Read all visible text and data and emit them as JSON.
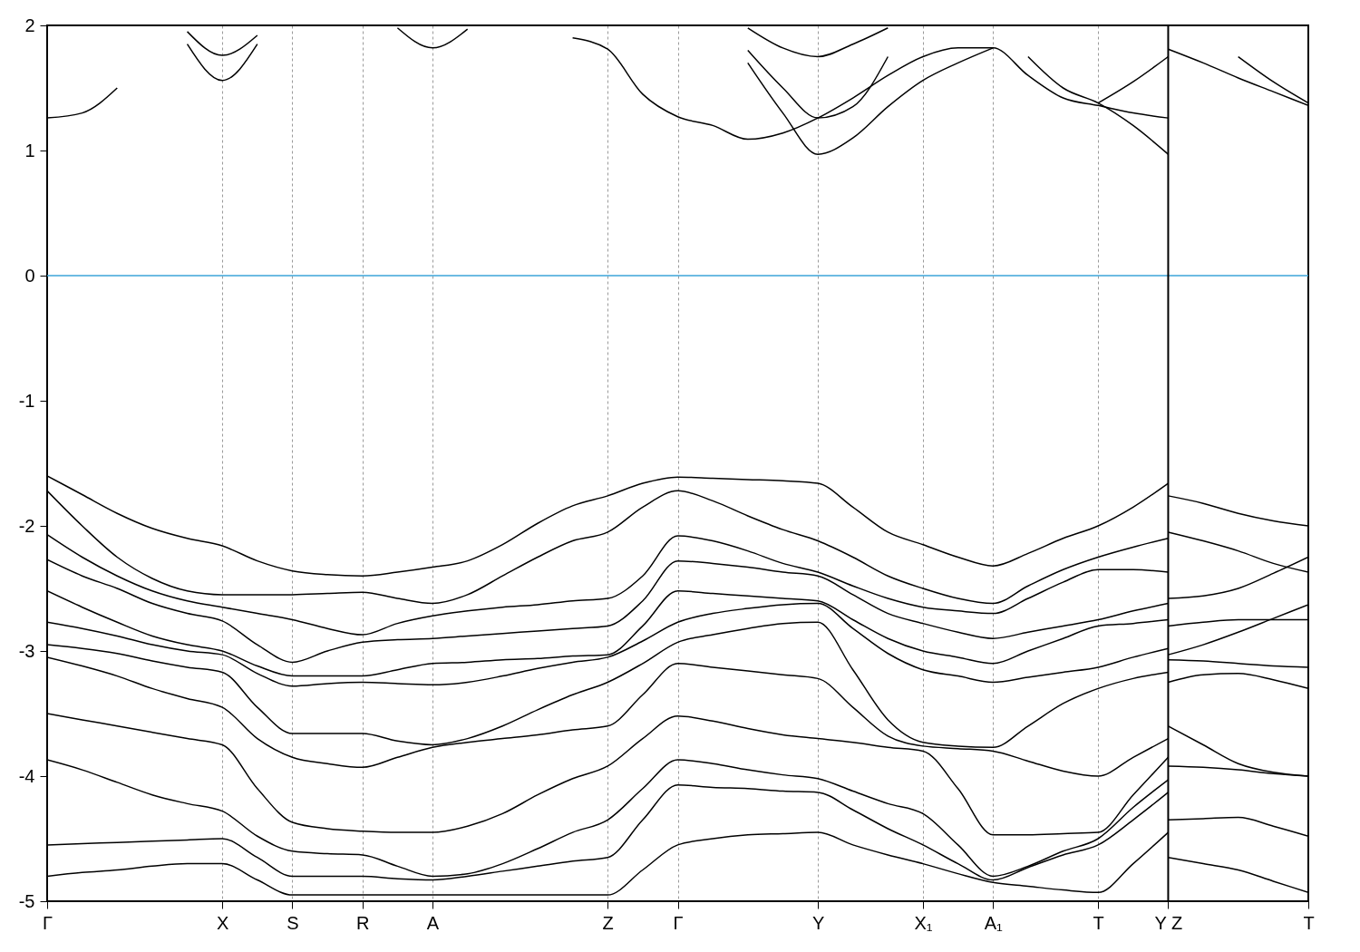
{
  "chart_data": {
    "type": "line",
    "ylim": [
      -5,
      2
    ],
    "categories": [
      "Γ",
      null,
      null,
      null,
      null,
      "X",
      null,
      "S",
      null,
      "R",
      null,
      "A",
      null,
      null,
      null,
      null,
      "Z",
      null,
      "Γ",
      null,
      null,
      null,
      "Y",
      null,
      null,
      "X₁",
      null,
      "A₁",
      null,
      null,
      "T",
      null,
      "Y Z",
      null,
      null,
      null,
      "T"
    ],
    "yticks": [
      -5,
      -4,
      -3,
      -2,
      -1,
      0,
      1,
      2
    ],
    "grid": "x",
    "legend": false,
    "ref_lines": [
      {
        "axis": "y",
        "value": 0,
        "color": "#3da5d9"
      },
      {
        "axis": "x",
        "value": "Y Z",
        "color": "#000000"
      }
    ],
    "series": [
      {
        "color": "#000000",
        "values": [
          1.26,
          1.3,
          1.5,
          null,
          null,
          null,
          null,
          null,
          null,
          null,
          null,
          null,
          null,
          null,
          null,
          null,
          null,
          null,
          null,
          null,
          null,
          null,
          null,
          null,
          null,
          null,
          null,
          null,
          null,
          null,
          null,
          null,
          null,
          null,
          null,
          null,
          null
        ]
      },
      {
        "color": "#000000",
        "values": [
          null,
          null,
          null,
          null,
          1.85,
          1.56,
          1.85,
          null,
          null,
          null,
          null,
          null,
          null,
          null,
          null,
          null,
          null,
          null,
          null,
          null,
          null,
          null,
          null,
          null,
          null,
          null,
          null,
          null,
          null,
          null,
          null,
          null,
          null,
          null,
          null,
          null,
          null
        ]
      },
      {
        "color": "#000000",
        "values": [
          null,
          null,
          null,
          null,
          1.95,
          1.76,
          1.92,
          null,
          null,
          null,
          null,
          null,
          null,
          null,
          null,
          null,
          null,
          null,
          null,
          null,
          null,
          null,
          null,
          null,
          null,
          null,
          null,
          null,
          null,
          null,
          null,
          null,
          null,
          null,
          null,
          null,
          null
        ]
      },
      {
        "color": "#000000",
        "values": [
          null,
          null,
          null,
          null,
          null,
          null,
          null,
          null,
          null,
          null,
          1.98,
          1.82,
          1.97,
          null,
          null,
          null,
          null,
          null,
          null,
          null,
          null,
          null,
          null,
          null,
          null,
          null,
          null,
          null,
          null,
          null,
          null,
          null,
          null,
          null,
          null,
          null,
          null
        ]
      },
      {
        "color": "#000000",
        "values": [
          null,
          null,
          null,
          null,
          null,
          null,
          null,
          null,
          null,
          null,
          null,
          null,
          null,
          null,
          null,
          1.9,
          1.81,
          1.45,
          1.27,
          1.2,
          1.09,
          1.14,
          1.26,
          1.42,
          1.6,
          1.75,
          1.82,
          1.82,
          1.6,
          1.42,
          1.36,
          1.3,
          1.26,
          null,
          null,
          null,
          null
        ]
      },
      {
        "color": "#000000",
        "values": [
          null,
          null,
          null,
          null,
          null,
          null,
          null,
          null,
          null,
          null,
          null,
          null,
          null,
          null,
          null,
          null,
          null,
          null,
          null,
          null,
          1.7,
          1.3,
          0.97,
          1.1,
          1.35,
          1.56,
          1.7,
          1.82,
          null,
          null,
          null,
          null,
          null,
          null,
          null,
          null,
          null
        ]
      },
      {
        "color": "#000000",
        "values": [
          null,
          null,
          null,
          null,
          null,
          null,
          null,
          null,
          null,
          null,
          null,
          null,
          null,
          null,
          null,
          null,
          null,
          null,
          null,
          null,
          1.98,
          1.82,
          1.75,
          1.85,
          1.98,
          null,
          null,
          null,
          null,
          null,
          null,
          null,
          null,
          null,
          null,
          null,
          null
        ]
      },
      {
        "color": "#000000",
        "values": [
          null,
          null,
          null,
          null,
          null,
          null,
          null,
          null,
          null,
          null,
          null,
          null,
          null,
          null,
          null,
          null,
          null,
          null,
          null,
          null,
          1.8,
          1.5,
          1.26,
          1.35,
          1.75,
          null,
          null,
          null,
          null,
          null,
          null,
          null,
          null,
          null,
          null,
          null,
          null
        ]
      },
      {
        "color": "#000000",
        "values": [
          null,
          null,
          null,
          null,
          null,
          null,
          null,
          null,
          null,
          null,
          null,
          null,
          null,
          null,
          null,
          null,
          null,
          null,
          null,
          null,
          null,
          null,
          null,
          null,
          null,
          null,
          null,
          null,
          1.75,
          1.5,
          1.38,
          1.2,
          0.97,
          null,
          null,
          null,
          null
        ]
      },
      {
        "color": "#000000",
        "values": [
          null,
          null,
          null,
          null,
          null,
          null,
          null,
          null,
          null,
          null,
          null,
          null,
          null,
          null,
          null,
          null,
          null,
          null,
          null,
          null,
          null,
          null,
          null,
          null,
          null,
          null,
          null,
          null,
          null,
          null,
          1.38,
          1.55,
          1.75,
          null,
          null,
          null,
          null
        ]
      },
      {
        "color": "#000000",
        "values": [
          null,
          null,
          null,
          null,
          null,
          null,
          null,
          null,
          null,
          null,
          null,
          null,
          null,
          null,
          null,
          null,
          null,
          null,
          null,
          null,
          null,
          null,
          null,
          null,
          null,
          null,
          null,
          null,
          null,
          null,
          null,
          null,
          1.81,
          1.7,
          1.58,
          1.47,
          1.36
        ]
      },
      {
        "color": "#000000",
        "values": [
          null,
          null,
          null,
          null,
          null,
          null,
          null,
          null,
          null,
          null,
          null,
          null,
          null,
          null,
          null,
          null,
          null,
          null,
          null,
          null,
          null,
          null,
          null,
          null,
          null,
          null,
          null,
          null,
          null,
          null,
          null,
          null,
          null,
          null,
          1.75,
          1.55,
          1.38
        ]
      },
      {
        "color": "#000000",
        "values": [
          -1.6,
          -1.75,
          -1.9,
          -2.02,
          -2.1,
          -2.16,
          -2.28,
          -2.36,
          -2.39,
          -2.4,
          -2.37,
          -2.33,
          -2.28,
          -2.15,
          -1.98,
          -1.84,
          -1.76,
          -1.66,
          -1.61,
          -1.62,
          -1.63,
          -1.64,
          -1.66,
          -1.85,
          -2.05,
          -2.15,
          -2.25,
          -2.32,
          -2.22,
          -2.1,
          -2.0,
          -1.85,
          -1.66,
          null,
          null,
          null,
          null
        ]
      },
      {
        "color": "#000000",
        "values": [
          -1.72,
          -2.0,
          -2.25,
          -2.42,
          -2.52,
          -2.55,
          -2.55,
          -2.55,
          -2.54,
          -2.53,
          -2.58,
          -2.62,
          -2.55,
          -2.4,
          -2.25,
          -2.12,
          -2.05,
          -1.85,
          -1.72,
          -1.8,
          -1.92,
          -2.03,
          -2.12,
          -2.25,
          -2.4,
          -2.5,
          -2.58,
          -2.62,
          -2.48,
          -2.35,
          -2.25,
          -2.17,
          -2.1,
          null,
          null,
          null,
          null
        ]
      },
      {
        "color": "#000000",
        "values": [
          -2.07,
          -2.25,
          -2.4,
          -2.52,
          -2.6,
          -2.65,
          -2.7,
          -2.75,
          -2.82,
          -2.87,
          -2.78,
          -2.72,
          -2.68,
          -2.65,
          -2.63,
          -2.6,
          -2.58,
          -2.4,
          -2.08,
          -2.12,
          -2.2,
          -2.3,
          -2.37,
          -2.48,
          -2.58,
          -2.65,
          -2.68,
          -2.7,
          -2.58,
          -2.45,
          -2.35,
          -2.35,
          -2.37,
          null,
          null,
          null,
          null
        ]
      },
      {
        "color": "#000000",
        "values": [
          -2.27,
          -2.4,
          -2.5,
          -2.62,
          -2.7,
          -2.76,
          -2.95,
          -3.09,
          -3.0,
          -2.93,
          -2.91,
          -2.9,
          -2.88,
          -2.86,
          -2.84,
          -2.82,
          -2.8,
          -2.6,
          -2.28,
          -2.3,
          -2.33,
          -2.37,
          -2.4,
          -2.55,
          -2.7,
          -2.78,
          -2.85,
          -2.9,
          -2.85,
          -2.8,
          -2.75,
          -2.68,
          -2.62,
          null,
          null,
          null,
          null
        ]
      },
      {
        "color": "#000000",
        "values": [
          -2.52,
          -2.65,
          -2.77,
          -2.88,
          -2.95,
          -3.0,
          -3.12,
          -3.2,
          -3.2,
          -3.2,
          -3.15,
          -3.1,
          -3.09,
          -3.07,
          -3.06,
          -3.04,
          -3.03,
          -2.8,
          -2.52,
          -2.54,
          -2.56,
          -2.58,
          -2.6,
          -2.75,
          -2.9,
          -3.0,
          -3.05,
          -3.1,
          -3.0,
          -2.9,
          -2.8,
          -2.78,
          -2.75,
          null,
          null,
          null,
          null
        ]
      },
      {
        "color": "#000000",
        "values": [
          -2.77,
          -2.82,
          -2.88,
          -2.95,
          -3.0,
          -3.03,
          -3.18,
          -3.28,
          -3.26,
          -3.25,
          -3.26,
          -3.27,
          -3.25,
          -3.2,
          -3.14,
          -3.09,
          -3.05,
          -2.92,
          -2.77,
          -2.7,
          -2.66,
          -2.63,
          -2.62,
          -2.82,
          -3.02,
          -3.15,
          -3.2,
          -3.25,
          -3.21,
          -3.17,
          -3.13,
          -3.05,
          -2.98,
          null,
          null,
          null,
          null
        ]
      },
      {
        "color": "#000000",
        "values": [
          -2.95,
          -2.98,
          -3.02,
          -3.08,
          -3.13,
          -3.17,
          -3.45,
          -3.66,
          -3.66,
          -3.66,
          -3.72,
          -3.75,
          -3.7,
          -3.6,
          -3.47,
          -3.35,
          -3.25,
          -3.1,
          -2.93,
          -2.87,
          -2.82,
          -2.78,
          -2.77,
          -3.15,
          -3.55,
          -3.73,
          -3.76,
          -3.77,
          -3.6,
          -3.42,
          -3.3,
          -3.22,
          -3.17,
          null,
          null,
          null,
          null
        ]
      },
      {
        "color": "#000000",
        "values": [
          -3.05,
          -3.12,
          -3.2,
          -3.3,
          -3.38,
          -3.45,
          -3.7,
          -3.85,
          -3.9,
          -3.93,
          -3.85,
          -3.77,
          -3.73,
          -3.7,
          -3.67,
          -3.63,
          -3.6,
          -3.35,
          -3.1,
          -3.13,
          -3.16,
          -3.19,
          -3.22,
          -3.45,
          -3.68,
          -3.76,
          -3.78,
          -3.8,
          -3.88,
          -3.96,
          -4.0,
          -3.85,
          -3.7,
          null,
          null,
          null,
          null
        ]
      },
      {
        "color": "#000000",
        "values": [
          -3.5,
          -3.55,
          -3.6,
          -3.65,
          -3.7,
          -3.75,
          -4.1,
          -4.37,
          -4.42,
          -4.44,
          -4.45,
          -4.45,
          -4.4,
          -4.3,
          -4.15,
          -4.02,
          -3.92,
          -3.7,
          -3.52,
          -3.56,
          -3.62,
          -3.67,
          -3.7,
          -3.73,
          -3.77,
          -3.8,
          -4.1,
          -4.47,
          -4.47,
          -4.46,
          -4.45,
          -4.15,
          -3.85,
          null,
          null,
          null,
          null
        ]
      },
      {
        "color": "#000000",
        "values": [
          -3.87,
          -3.95,
          -4.05,
          -4.15,
          -4.22,
          -4.28,
          -4.48,
          -4.6,
          -4.62,
          -4.63,
          -4.72,
          -4.8,
          -4.78,
          -4.7,
          -4.58,
          -4.45,
          -4.35,
          -4.1,
          -3.87,
          -3.9,
          -3.95,
          -3.99,
          -4.02,
          -4.12,
          -4.22,
          -4.3,
          -4.55,
          -4.8,
          -4.72,
          -4.6,
          -4.5,
          -4.25,
          -4.03,
          null,
          null,
          null,
          null
        ]
      },
      {
        "color": "#000000",
        "values": [
          -4.55,
          -4.54,
          -4.53,
          -4.52,
          -4.51,
          -4.5,
          -4.65,
          -4.8,
          -4.8,
          -4.8,
          -4.82,
          -4.83,
          -4.8,
          -4.76,
          -4.72,
          -4.68,
          -4.65,
          -4.35,
          -4.07,
          -4.09,
          -4.1,
          -4.12,
          -4.13,
          -4.27,
          -4.42,
          -4.55,
          -4.7,
          -4.83,
          -4.73,
          -4.63,
          -4.55,
          -4.35,
          -4.13,
          null,
          null,
          null,
          null
        ]
      },
      {
        "color": "#000000",
        "values": [
          -4.8,
          -4.77,
          -4.75,
          -4.72,
          -4.7,
          -4.7,
          -4.83,
          -4.95,
          -4.95,
          -4.95,
          -4.95,
          -4.95,
          -4.95,
          -4.95,
          -4.95,
          -4.95,
          -4.95,
          -4.75,
          -4.55,
          -4.5,
          -4.47,
          -4.46,
          -4.45,
          -4.55,
          -4.63,
          -4.7,
          -4.78,
          -4.85,
          -4.88,
          -4.91,
          -4.93,
          -4.7,
          -4.45,
          null,
          null,
          null,
          null
        ]
      },
      {
        "color": "#000000",
        "values": [
          null,
          null,
          null,
          null,
          null,
          null,
          null,
          null,
          null,
          null,
          null,
          null,
          null,
          null,
          null,
          null,
          null,
          null,
          null,
          null,
          null,
          null,
          null,
          null,
          null,
          null,
          null,
          null,
          null,
          null,
          null,
          null,
          -1.76,
          -1.82,
          -1.9,
          -1.96,
          -2.0
        ]
      },
      {
        "color": "#000000",
        "values": [
          null,
          null,
          null,
          null,
          null,
          null,
          null,
          null,
          null,
          null,
          null,
          null,
          null,
          null,
          null,
          null,
          null,
          null,
          null,
          null,
          null,
          null,
          null,
          null,
          null,
          null,
          null,
          null,
          null,
          null,
          null,
          null,
          -2.05,
          -2.12,
          -2.2,
          -2.3,
          -2.37
        ]
      },
      {
        "color": "#000000",
        "values": [
          null,
          null,
          null,
          null,
          null,
          null,
          null,
          null,
          null,
          null,
          null,
          null,
          null,
          null,
          null,
          null,
          null,
          null,
          null,
          null,
          null,
          null,
          null,
          null,
          null,
          null,
          null,
          null,
          null,
          null,
          null,
          null,
          -2.58,
          -2.56,
          -2.5,
          -2.38,
          -2.25
        ]
      },
      {
        "color": "#000000",
        "values": [
          null,
          null,
          null,
          null,
          null,
          null,
          null,
          null,
          null,
          null,
          null,
          null,
          null,
          null,
          null,
          null,
          null,
          null,
          null,
          null,
          null,
          null,
          null,
          null,
          null,
          null,
          null,
          null,
          null,
          null,
          null,
          null,
          -2.8,
          -2.77,
          -2.75,
          -2.75,
          -2.75
        ]
      },
      {
        "color": "#000000",
        "values": [
          null,
          null,
          null,
          null,
          null,
          null,
          null,
          null,
          null,
          null,
          null,
          null,
          null,
          null,
          null,
          null,
          null,
          null,
          null,
          null,
          null,
          null,
          null,
          null,
          null,
          null,
          null,
          null,
          null,
          null,
          null,
          null,
          -3.03,
          -2.95,
          -2.85,
          -2.74,
          -2.63
        ]
      },
      {
        "color": "#000000",
        "values": [
          null,
          null,
          null,
          null,
          null,
          null,
          null,
          null,
          null,
          null,
          null,
          null,
          null,
          null,
          null,
          null,
          null,
          null,
          null,
          null,
          null,
          null,
          null,
          null,
          null,
          null,
          null,
          null,
          null,
          null,
          null,
          null,
          -3.07,
          -3.08,
          -3.1,
          -3.12,
          -3.13
        ]
      },
      {
        "color": "#000000",
        "values": [
          null,
          null,
          null,
          null,
          null,
          null,
          null,
          null,
          null,
          null,
          null,
          null,
          null,
          null,
          null,
          null,
          null,
          null,
          null,
          null,
          null,
          null,
          null,
          null,
          null,
          null,
          null,
          null,
          null,
          null,
          null,
          null,
          -3.25,
          -3.19,
          -3.18,
          -3.23,
          -3.3
        ]
      },
      {
        "color": "#000000",
        "values": [
          null,
          null,
          null,
          null,
          null,
          null,
          null,
          null,
          null,
          null,
          null,
          null,
          null,
          null,
          null,
          null,
          null,
          null,
          null,
          null,
          null,
          null,
          null,
          null,
          null,
          null,
          null,
          null,
          null,
          null,
          null,
          null,
          -3.6,
          -3.75,
          -3.9,
          -3.97,
          -4.0
        ]
      },
      {
        "color": "#000000",
        "values": [
          null,
          null,
          null,
          null,
          null,
          null,
          null,
          null,
          null,
          null,
          null,
          null,
          null,
          null,
          null,
          null,
          null,
          null,
          null,
          null,
          null,
          null,
          null,
          null,
          null,
          null,
          null,
          null,
          null,
          null,
          null,
          null,
          -3.92,
          -3.93,
          -3.95,
          -3.98,
          -4.0
        ]
      },
      {
        "color": "#000000",
        "values": [
          null,
          null,
          null,
          null,
          null,
          null,
          null,
          null,
          null,
          null,
          null,
          null,
          null,
          null,
          null,
          null,
          null,
          null,
          null,
          null,
          null,
          null,
          null,
          null,
          null,
          null,
          null,
          null,
          null,
          null,
          null,
          null,
          -4.35,
          -4.34,
          -4.33,
          -4.4,
          -4.48
        ]
      },
      {
        "color": "#000000",
        "values": [
          null,
          null,
          null,
          null,
          null,
          null,
          null,
          null,
          null,
          null,
          null,
          null,
          null,
          null,
          null,
          null,
          null,
          null,
          null,
          null,
          null,
          null,
          null,
          null,
          null,
          null,
          null,
          null,
          null,
          null,
          null,
          null,
          -4.65,
          -4.7,
          -4.75,
          -4.84,
          -4.93
        ]
      }
    ]
  }
}
